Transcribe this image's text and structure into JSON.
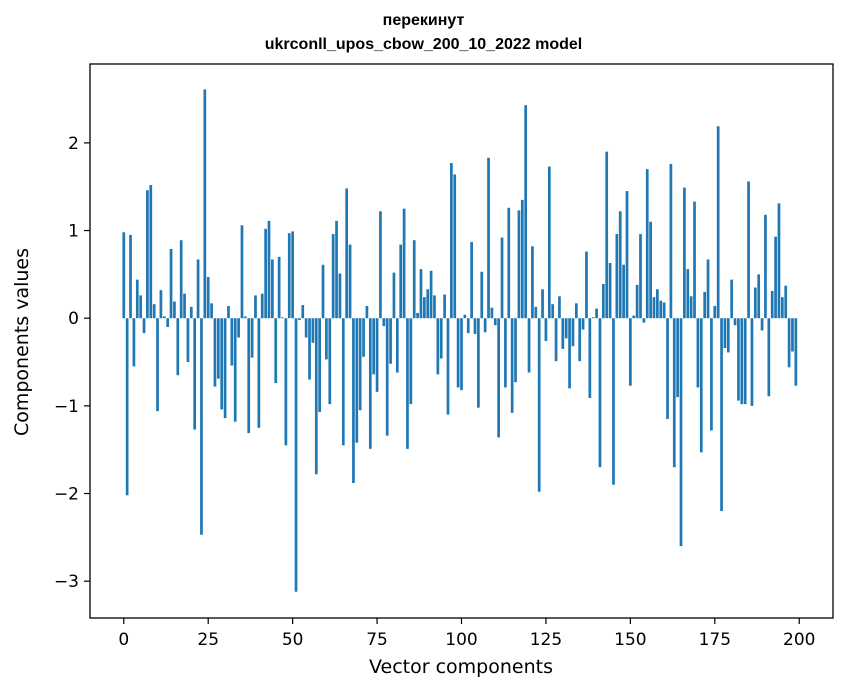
{
  "chart_data": {
    "type": "bar",
    "title": [
      "перекинут",
      "ukrconll_upos_cbow_200_10_2022 model"
    ],
    "xlabel": "Vector components",
    "ylabel": "Components values",
    "xlim": [
      -10,
      210
    ],
    "ylim": [
      -3.42,
      2.9
    ],
    "xticks": [
      0,
      25,
      50,
      75,
      100,
      125,
      150,
      175,
      200
    ],
    "yticks": [
      -3,
      -2,
      -1,
      0,
      1,
      2
    ],
    "ytick_labels": [
      "−3",
      "−2",
      "−1",
      "0",
      "1",
      "2"
    ],
    "bar_color": "#1f77b4",
    "grid": false,
    "x": [
      0,
      1,
      2,
      3,
      4,
      5,
      6,
      7,
      8,
      9,
      10,
      11,
      12,
      13,
      14,
      15,
      16,
      17,
      18,
      19,
      20,
      21,
      22,
      23,
      24,
      25,
      26,
      27,
      28,
      29,
      30,
      31,
      32,
      33,
      34,
      35,
      36,
      37,
      38,
      39,
      40,
      41,
      42,
      43,
      44,
      45,
      46,
      47,
      48,
      49,
      50,
      51,
      52,
      53,
      54,
      55,
      56,
      57,
      58,
      59,
      60,
      61,
      62,
      63,
      64,
      65,
      66,
      67,
      68,
      69,
      70,
      71,
      72,
      73,
      74,
      75,
      76,
      77,
      78,
      79,
      80,
      81,
      82,
      83,
      84,
      85,
      86,
      87,
      88,
      89,
      90,
      91,
      92,
      93,
      94,
      95,
      96,
      97,
      98,
      99,
      100,
      101,
      102,
      103,
      104,
      105,
      106,
      107,
      108,
      109,
      110,
      111,
      112,
      113,
      114,
      115,
      116,
      117,
      118,
      119,
      120,
      121,
      122,
      123,
      124,
      125,
      126,
      127,
      128,
      129,
      130,
      131,
      132,
      133,
      134,
      135,
      136,
      137,
      138,
      139,
      140,
      141,
      142,
      143,
      144,
      145,
      146,
      147,
      148,
      149,
      150,
      151,
      152,
      153,
      154,
      155,
      156,
      157,
      158,
      159,
      160,
      161,
      162,
      163,
      164,
      165,
      166,
      167,
      168,
      169,
      170,
      171,
      172,
      173,
      174,
      175,
      176,
      177,
      178,
      179,
      180,
      181,
      182,
      183,
      184,
      185,
      186,
      187,
      188,
      189,
      190,
      191,
      192,
      193,
      194,
      195,
      196,
      197,
      198,
      199
    ],
    "values": [
      0.98,
      -2.02,
      0.95,
      -0.55,
      0.44,
      0.26,
      -0.17,
      1.46,
      1.52,
      0.16,
      -1.06,
      0.32,
      0.02,
      -0.1,
      0.79,
      0.19,
      -0.65,
      0.89,
      0.28,
      -0.5,
      0.13,
      -1.27,
      0.67,
      -2.47,
      2.61,
      0.47,
      0.17,
      -0.78,
      -0.69,
      -1.04,
      -1.14,
      0.14,
      -0.54,
      -1.18,
      -0.22,
      1.06,
      0.02,
      -1.31,
      -0.45,
      0.26,
      -1.25,
      0.28,
      1.02,
      1.11,
      0.67,
      -0.74,
      0.7,
      0.01,
      -1.45,
      0.97,
      0.99,
      -3.12,
      -0.02,
      0.15,
      -0.22,
      -0.7,
      -0.28,
      -1.78,
      -1.07,
      0.61,
      -0.47,
      -0.98,
      0.96,
      1.11,
      0.51,
      -1.45,
      1.48,
      0.84,
      -1.88,
      -1.42,
      -1.05,
      -0.44,
      0.14,
      -1.49,
      -0.64,
      -0.84,
      1.22,
      -0.09,
      -1.34,
      -0.52,
      0.52,
      -0.62,
      0.84,
      1.25,
      -1.49,
      -0.98,
      0.89,
      0.06,
      0.56,
      0.24,
      0.33,
      0.54,
      0.26,
      -0.64,
      -0.46,
      0.27,
      -1.1,
      1.77,
      1.64,
      -0.79,
      -0.82,
      0.04,
      -0.17,
      0.87,
      -0.18,
      -1.02,
      0.53,
      -0.16,
      1.83,
      0.12,
      -0.08,
      -1.36,
      0.92,
      -0.79,
      1.26,
      -1.08,
      -0.73,
      1.23,
      1.35,
      2.43,
      -0.62,
      0.82,
      0.13,
      -1.98,
      0.33,
      -0.26,
      1.73,
      0.16,
      -0.49,
      0.25,
      -0.35,
      -0.23,
      -0.8,
      -0.32,
      0.17,
      -0.49,
      -0.13,
      0.76,
      -0.91,
      0.01,
      0.11,
      -1.7,
      0.39,
      1.9,
      0.63,
      -1.9,
      0.96,
      1.22,
      0.61,
      1.45,
      -0.77,
      0.03,
      0.38,
      0.96,
      -0.05,
      1.7,
      1.1,
      0.24,
      0.33,
      0.2,
      0.18,
      -1.15,
      1.76,
      -1.7,
      -0.9,
      -2.6,
      1.49,
      0.56,
      0.25,
      1.33,
      -0.79,
      -1.53,
      0.3,
      0.67,
      -1.28,
      0.14,
      2.19,
      -2.2,
      -0.34,
      -0.39,
      0.44,
      -0.08,
      -0.94,
      -0.98,
      -0.98,
      1.56,
      -1.0,
      0.35,
      0.5,
      -0.14,
      1.18,
      -0.89,
      0.31,
      0.93,
      1.31,
      0.24,
      0.37,
      -0.56,
      -0.38,
      -0.77
    ]
  }
}
